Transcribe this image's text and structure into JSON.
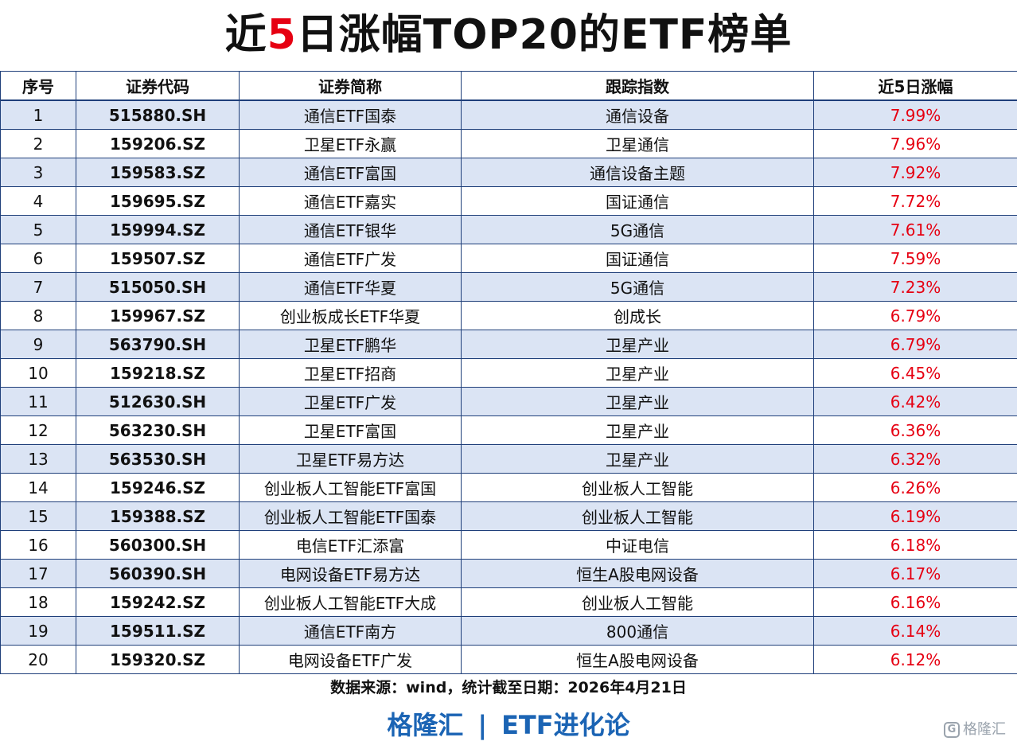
{
  "title": {
    "prefix": "近",
    "highlight": "5",
    "suffix": "日涨幅TOP20的ETF榜单"
  },
  "table": {
    "headers": [
      "序号",
      "证券代码",
      "证券简称",
      "跟踪指数",
      "近5日涨幅"
    ],
    "rows": [
      [
        "1",
        "515880.SH",
        "通信ETF国泰",
        "通信设备",
        "7.99%"
      ],
      [
        "2",
        "159206.SZ",
        "卫星ETF永赢",
        "卫星通信",
        "7.96%"
      ],
      [
        "3",
        "159583.SZ",
        "通信ETF富国",
        "通信设备主题",
        "7.92%"
      ],
      [
        "4",
        "159695.SZ",
        "通信ETF嘉实",
        "国证通信",
        "7.72%"
      ],
      [
        "5",
        "159994.SZ",
        "通信ETF银华",
        "5G通信",
        "7.61%"
      ],
      [
        "6",
        "159507.SZ",
        "通信ETF广发",
        "国证通信",
        "7.59%"
      ],
      [
        "7",
        "515050.SH",
        "通信ETF华夏",
        "5G通信",
        "7.23%"
      ],
      [
        "8",
        "159967.SZ",
        "创业板成长ETF华夏",
        "创成长",
        "6.79%"
      ],
      [
        "9",
        "563790.SH",
        "卫星ETF鹏华",
        "卫星产业",
        "6.79%"
      ],
      [
        "10",
        "159218.SZ",
        "卫星ETF招商",
        "卫星产业",
        "6.45%"
      ],
      [
        "11",
        "512630.SH",
        "卫星ETF广发",
        "卫星产业",
        "6.42%"
      ],
      [
        "12",
        "563230.SH",
        "卫星ETF富国",
        "卫星产业",
        "6.36%"
      ],
      [
        "13",
        "563530.SH",
        "卫星ETF易方达",
        "卫星产业",
        "6.32%"
      ],
      [
        "14",
        "159246.SZ",
        "创业板人工智能ETF富国",
        "创业板人工智能",
        "6.26%"
      ],
      [
        "15",
        "159388.SZ",
        "创业板人工智能ETF国泰",
        "创业板人工智能",
        "6.19%"
      ],
      [
        "16",
        "560300.SH",
        "电信ETF汇添富",
        "中证电信",
        "6.18%"
      ],
      [
        "17",
        "560390.SH",
        "电网设备ETF易方达",
        "恒生A股电网设备",
        "6.17%"
      ],
      [
        "18",
        "159242.SZ",
        "创业板人工智能ETF大成",
        "创业板人工智能",
        "6.16%"
      ],
      [
        "19",
        "159511.SZ",
        "通信ETF南方",
        "800通信",
        "6.14%"
      ],
      [
        "20",
        "159320.SZ",
        "电网设备ETF广发",
        "恒生A股电网设备",
        "6.12%"
      ]
    ]
  },
  "footnote": "数据来源：wind，统计截至日期：2026年4月21日",
  "brand": {
    "left": "格隆汇",
    "separator": "|",
    "right": "ETF进化论"
  },
  "watermark": {
    "icon": "G",
    "text": "格隆汇"
  },
  "colors": {
    "highlight": "#e60012",
    "brand": "#1b64b4",
    "row_alt": "#dbe4f4",
    "border": "#1f3f7a"
  }
}
